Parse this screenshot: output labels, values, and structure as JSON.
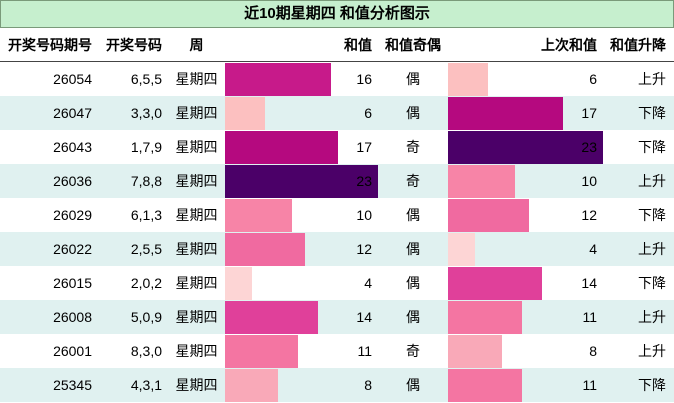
{
  "header": {
    "title": "近10期星期四 和值分析图示"
  },
  "table": {
    "columns": [
      "开奖号码期号",
      "开奖号码",
      "周",
      "和值",
      "和值奇偶",
      "上次和值",
      "和值升降"
    ],
    "rows": [
      {
        "issue": "26054",
        "numbers": "6,5,5",
        "weekday": "星期四",
        "sum": 16,
        "sum_color": "#c71a8a",
        "parity": "偶",
        "prev_sum": 6,
        "prev_color": "#fcc0c0",
        "trend": "上升"
      },
      {
        "issue": "26047",
        "numbers": "3,3,0",
        "weekday": "星期四",
        "sum": 6,
        "sum_color": "#fcc0c0",
        "parity": "偶",
        "prev_sum": 17,
        "prev_color": "#b5097f",
        "trend": "下降"
      },
      {
        "issue": "26043",
        "numbers": "1,7,9",
        "weekday": "星期四",
        "sum": 17,
        "sum_color": "#b5097f",
        "parity": "奇",
        "prev_sum": 23,
        "prev_color": "#4b0068",
        "trend": "下降"
      },
      {
        "issue": "26036",
        "numbers": "7,8,8",
        "weekday": "星期四",
        "sum": 23,
        "sum_color": "#4b0068",
        "parity": "奇",
        "prev_sum": 10,
        "prev_color": "#f784a7",
        "trend": "上升"
      },
      {
        "issue": "26029",
        "numbers": "6,1,3",
        "weekday": "星期四",
        "sum": 10,
        "sum_color": "#f784a7",
        "parity": "偶",
        "prev_sum": 12,
        "prev_color": "#f06aa0",
        "trend": "下降"
      },
      {
        "issue": "26022",
        "numbers": "2,5,5",
        "weekday": "星期四",
        "sum": 12,
        "sum_color": "#f06aa0",
        "parity": "偶",
        "prev_sum": 4,
        "prev_color": "#fdd5d5",
        "trend": "上升"
      },
      {
        "issue": "26015",
        "numbers": "2,0,2",
        "weekday": "星期四",
        "sum": 4,
        "sum_color": "#fdd5d5",
        "parity": "偶",
        "prev_sum": 14,
        "prev_color": "#e0409a",
        "trend": "下降"
      },
      {
        "issue": "26008",
        "numbers": "5,0,9",
        "weekday": "星期四",
        "sum": 14,
        "sum_color": "#e0409a",
        "parity": "偶",
        "prev_sum": 11,
        "prev_color": "#f475a2",
        "trend": "上升"
      },
      {
        "issue": "26001",
        "numbers": "8,3,0",
        "weekday": "星期四",
        "sum": 11,
        "sum_color": "#f475a2",
        "parity": "奇",
        "prev_sum": 8,
        "prev_color": "#f9a9b8",
        "trend": "上升"
      },
      {
        "issue": "25345",
        "numbers": "4,3,1",
        "weekday": "星期四",
        "sum": 8,
        "sum_color": "#f9a9b8",
        "parity": "偶",
        "prev_sum": 11,
        "prev_color": "#f475a2",
        "trend": "下降"
      }
    ]
  }
}
